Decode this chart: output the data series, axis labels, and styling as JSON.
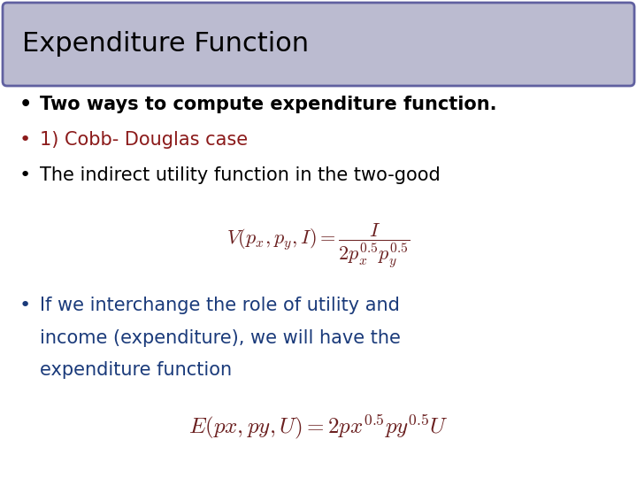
{
  "title": "Expenditure Function",
  "title_color": "#000000",
  "title_bg_color": "#bbbbd0",
  "title_border_color": "#6060a0",
  "background_color": "#ffffff",
  "bullet1_text": "Two ways to compute expenditure function.",
  "bullet1_color": "#000000",
  "bullet2_text": "1) Cobb- Douglas case",
  "bullet2_color": "#8b1a1a",
  "bullet3_text": "The indirect utility function in the two-good",
  "bullet3_color": "#000000",
  "equation1": "$V(p_x,p_y,I)=\\dfrac{I}{2p_x^{0.5}p_y^{0.5}}$",
  "equation1_color": "#6b2020",
  "bullet4_line1": "If we interchange the role of utility and",
  "bullet4_line2": "income (expenditure), we will have the",
  "bullet4_line3": "expenditure function",
  "bullet4_color": "#1a3a7a",
  "equation2": "$E(px,py,U) = 2px^{0.5}py^{0.5}U$",
  "equation2_color": "#6b2020",
  "title_fontsize": 22,
  "bullet_fontsize": 15,
  "eq_fontsize": 16,
  "bullet4_fontsize": 15
}
